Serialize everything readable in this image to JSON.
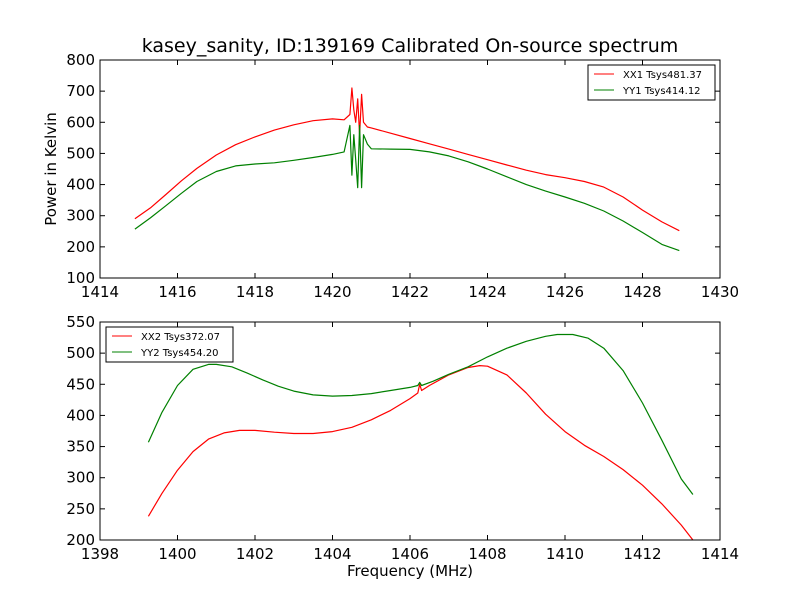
{
  "title": "kasey_sanity, ID:139169 Calibrated On-source spectrum",
  "chart_data": [
    {
      "type": "line",
      "panel": "top",
      "xlabel": "",
      "ylabel": "Power in Kelvin",
      "xlim": [
        1414,
        1430
      ],
      "ylim": [
        100,
        800
      ],
      "xticks": [
        1414,
        1416,
        1418,
        1420,
        1422,
        1424,
        1426,
        1428,
        1430
      ],
      "yticks": [
        100,
        200,
        300,
        400,
        500,
        600,
        700,
        800
      ],
      "legend_position": "top-right",
      "series": [
        {
          "name": "XX1 Tsys481.37",
          "color": "#ff0000",
          "x": [
            1414.9,
            1415.3,
            1415.7,
            1416.1,
            1416.5,
            1417.0,
            1417.5,
            1418.0,
            1418.5,
            1419.0,
            1419.5,
            1420.0,
            1420.3,
            1420.45,
            1420.5,
            1420.55,
            1420.6,
            1420.65,
            1420.7,
            1420.75,
            1420.8,
            1420.9,
            1421.0,
            1421.5,
            1422.0,
            1422.5,
            1423.0,
            1423.5,
            1424.0,
            1424.5,
            1425.0,
            1425.5,
            1426.0,
            1426.5,
            1427.0,
            1427.5,
            1428.0,
            1428.5,
            1428.95
          ],
          "values": [
            290,
            325,
            368,
            412,
            452,
            495,
            528,
            553,
            575,
            592,
            605,
            611,
            608,
            625,
            710,
            640,
            600,
            675,
            560,
            690,
            600,
            585,
            582,
            565,
            548,
            531,
            514,
            497,
            480,
            463,
            446,
            432,
            422,
            410,
            392,
            360,
            318,
            280,
            252
          ]
        },
        {
          "name": "YY1 Tsys414.12",
          "color": "#008000",
          "x": [
            1414.9,
            1415.3,
            1415.7,
            1416.1,
            1416.5,
            1417.0,
            1417.5,
            1418.0,
            1418.5,
            1419.0,
            1419.5,
            1420.0,
            1420.3,
            1420.45,
            1420.5,
            1420.55,
            1420.6,
            1420.65,
            1420.7,
            1420.75,
            1420.8,
            1420.9,
            1421.0,
            1421.5,
            1422.0,
            1422.5,
            1423.0,
            1423.5,
            1424.0,
            1424.5,
            1425.0,
            1425.5,
            1426.0,
            1426.5,
            1427.0,
            1427.5,
            1428.0,
            1428.5,
            1428.95
          ],
          "values": [
            257,
            293,
            332,
            372,
            410,
            442,
            460,
            466,
            470,
            478,
            487,
            497,
            505,
            590,
            430,
            560,
            480,
            390,
            590,
            390,
            560,
            530,
            515,
            514,
            513,
            505,
            492,
            473,
            450,
            425,
            400,
            379,
            360,
            340,
            315,
            283,
            246,
            208,
            188
          ]
        }
      ]
    },
    {
      "type": "line",
      "panel": "bottom",
      "xlabel": "Frequency (MHz)",
      "ylabel": "",
      "xlim": [
        1398,
        1414
      ],
      "ylim": [
        200,
        550
      ],
      "xticks": [
        1398,
        1400,
        1402,
        1404,
        1406,
        1408,
        1410,
        1412,
        1414
      ],
      "yticks": [
        200,
        250,
        300,
        350,
        400,
        450,
        500,
        550
      ],
      "legend_position": "top-left",
      "series": [
        {
          "name": "XX2 Tsys372.07",
          "color": "#ff0000",
          "x": [
            1399.25,
            1399.6,
            1400.0,
            1400.4,
            1400.8,
            1401.2,
            1401.6,
            1402.0,
            1402.5,
            1403.0,
            1403.5,
            1404.0,
            1404.5,
            1405.0,
            1405.5,
            1406.0,
            1406.2,
            1406.25,
            1406.3,
            1406.5,
            1407.0,
            1407.5,
            1407.8,
            1408.0,
            1408.5,
            1409.0,
            1409.5,
            1410.0,
            1410.5,
            1411.0,
            1411.5,
            1412.0,
            1412.5,
            1413.0,
            1413.3
          ],
          "values": [
            238,
            275,
            312,
            342,
            362,
            372,
            376,
            376,
            373,
            371,
            371,
            374,
            381,
            393,
            408,
            427,
            436,
            450,
            440,
            448,
            465,
            477,
            480,
            479,
            465,
            436,
            402,
            374,
            352,
            334,
            313,
            288,
            258,
            224,
            200
          ]
        },
        {
          "name": "YY2 Tsys454.20",
          "color": "#008000",
          "x": [
            1399.25,
            1399.6,
            1400.0,
            1400.4,
            1400.8,
            1401.0,
            1401.4,
            1401.8,
            1402.2,
            1402.6,
            1403.0,
            1403.5,
            1404.0,
            1404.5,
            1405.0,
            1405.5,
            1406.0,
            1406.2,
            1406.25,
            1406.3,
            1406.6,
            1407.0,
            1407.5,
            1408.0,
            1408.5,
            1409.0,
            1409.5,
            1409.8,
            1410.2,
            1410.6,
            1411.0,
            1411.5,
            1412.0,
            1412.5,
            1413.0,
            1413.3
          ],
          "values": [
            357,
            405,
            448,
            474,
            482,
            482,
            478,
            468,
            457,
            447,
            439,
            433,
            431,
            432,
            435,
            440,
            445,
            448,
            453,
            448,
            455,
            466,
            478,
            494,
            508,
            519,
            527,
            530,
            530,
            524,
            508,
            472,
            420,
            360,
            298,
            273
          ]
        }
      ]
    }
  ]
}
